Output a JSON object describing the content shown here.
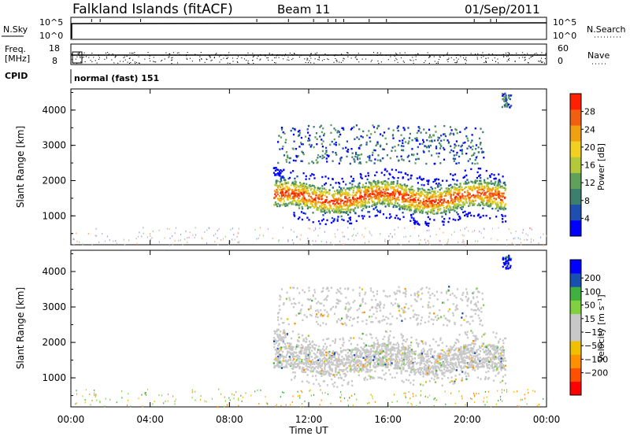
{
  "header": {
    "title": "Falkland Islands (fitACF)",
    "beam": "Beam 11",
    "date": "01/Sep/2011"
  },
  "panels": {
    "nsky": {
      "label": "N.Sky",
      "ticks": [
        "10^5",
        "10^0"
      ],
      "right_ticks": [
        "10^5",
        "10^0"
      ],
      "right_label": "N.Search"
    },
    "freq": {
      "label_top": "Freq.",
      "label_unit": "[MHz]",
      "ticks": [
        "18",
        "8"
      ],
      "right_ticks": [
        "60",
        "0"
      ],
      "right_label": "Nave"
    },
    "cpid": {
      "label": "CPID",
      "text": "normal (fast) 151"
    }
  },
  "colors": {
    "power_scale": [
      "#0000ff",
      "#1e4fb0",
      "#3d7f6e",
      "#5fa05a",
      "#b4c83c",
      "#f0d020",
      "#f0a010",
      "#f06010",
      "#ff2000"
    ],
    "velocity_scale": [
      "#ff0000",
      "#ff5000",
      "#ff9000",
      "#f0c000",
      "#c8c8c8",
      "#c8c8c8",
      "#80d040",
      "#40b040",
      "#1850b0",
      "#0000ff"
    ]
  },
  "chart_data": [
    {
      "type": "heatmap",
      "title": "",
      "xlabel": "Time UT",
      "ylabel": "Slant Range [km]",
      "x_ticks": [
        "00:00",
        "04:00",
        "08:00",
        "12:00",
        "16:00",
        "20:00",
        "00:00"
      ],
      "xlim_hours": [
        0,
        24
      ],
      "y_ticks": [
        "1000",
        "2000",
        "3000",
        "4000"
      ],
      "ylim": [
        180,
        4600
      ],
      "colorbar": {
        "label": "Power [dB]",
        "ticks": [
          "4",
          "8",
          "12",
          "16",
          "20",
          "24",
          "28"
        ],
        "range": [
          0,
          32
        ]
      },
      "features": [
        {
          "name": "main_echo_band",
          "start_hr": 10.2,
          "end_hr": 21.9,
          "range_km": [
            1100,
            2400
          ],
          "peak_db": 28
        },
        {
          "name": "upper_scatter",
          "start_hr": 10.4,
          "end_hr": 20.8,
          "range_km": [
            2500,
            3600
          ],
          "peak_db": 12
        },
        {
          "name": "low_noise",
          "start_hr": 0,
          "end_hr": 24,
          "range_km": [
            180,
            700
          ],
          "peak_db": 10
        },
        {
          "name": "top_echo",
          "start_hr": 21.7,
          "end_hr": 22.2,
          "range_km": [
            4100,
            4500
          ],
          "peak_db": 16
        }
      ]
    },
    {
      "type": "heatmap",
      "title": "",
      "xlabel": "Time UT",
      "ylabel": "Slant Range [km]",
      "x_ticks": [
        "00:00",
        "04:00",
        "08:00",
        "12:00",
        "16:00",
        "20:00",
        "00:00"
      ],
      "xlim_hours": [
        0,
        24
      ],
      "y_ticks": [
        "1000",
        "2000",
        "3000",
        "4000"
      ],
      "ylim": [
        180,
        4600
      ],
      "colorbar": {
        "label": "Velocity [m s⁻¹]",
        "ticks": [
          "200",
          "100",
          "50",
          "15",
          "−15",
          "−50",
          "−100",
          "−200"
        ],
        "range": [
          -250,
          250
        ]
      },
      "features": [
        {
          "name": "main_echo_band",
          "start_hr": 10.2,
          "end_hr": 21.9,
          "range_km": [
            1100,
            2400
          ],
          "typical_velocity": 0
        },
        {
          "name": "upper_scatter",
          "start_hr": 10.4,
          "end_hr": 20.8,
          "range_km": [
            2500,
            3600
          ],
          "typical_velocity": 0
        },
        {
          "name": "top_echo",
          "start_hr": 21.7,
          "end_hr": 22.2,
          "range_km": [
            4100,
            4500
          ],
          "typical_velocity": 200
        }
      ]
    }
  ]
}
